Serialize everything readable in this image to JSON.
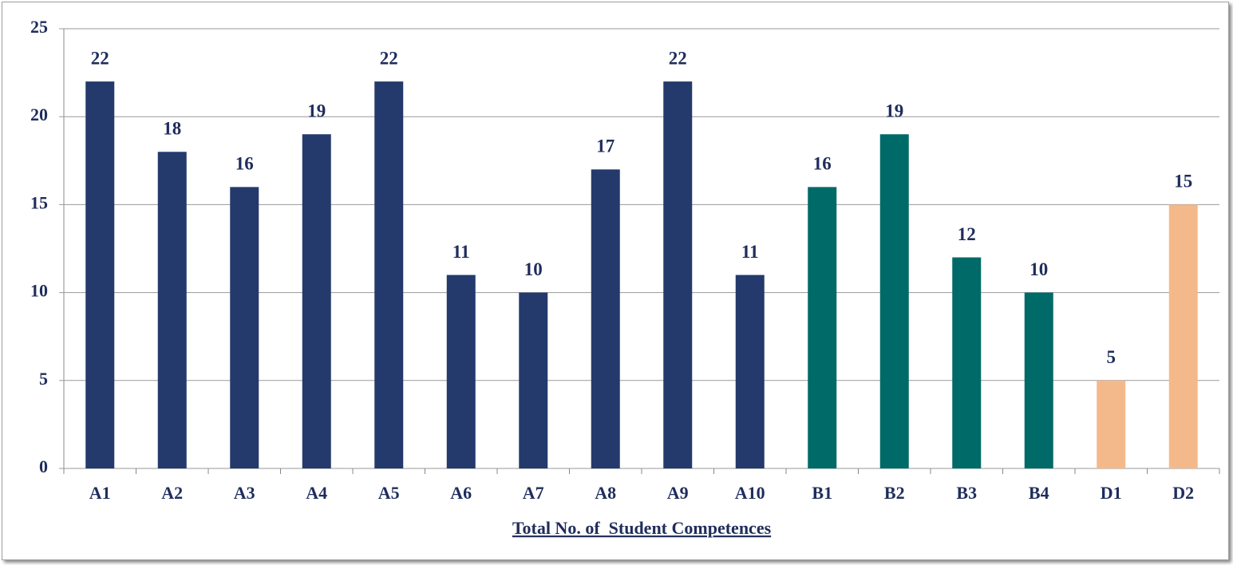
{
  "chart_data": {
    "type": "bar",
    "x_label": "Total No. of  Student Competences",
    "categories": [
      "A1",
      "A2",
      "A3",
      "A4",
      "A5",
      "A6",
      "A7",
      "A8",
      "A9",
      "A10",
      "B1",
      "B2",
      "B3",
      "B4",
      "D1",
      "D2"
    ],
    "values": [
      22,
      18,
      16,
      19,
      22,
      11,
      10,
      17,
      22,
      11,
      16,
      19,
      12,
      10,
      5,
      15
    ],
    "colors": [
      "#243a6c",
      "#243a6c",
      "#243a6c",
      "#243a6c",
      "#243a6c",
      "#243a6c",
      "#243a6c",
      "#243a6c",
      "#243a6c",
      "#243a6c",
      "#006a68",
      "#006a68",
      "#006a68",
      "#006a68",
      "#f4b98b",
      "#f4b98b"
    ],
    "ylim": [
      0,
      25
    ],
    "yticks": [
      0,
      5,
      10,
      15,
      20,
      25
    ],
    "grid": true
  }
}
